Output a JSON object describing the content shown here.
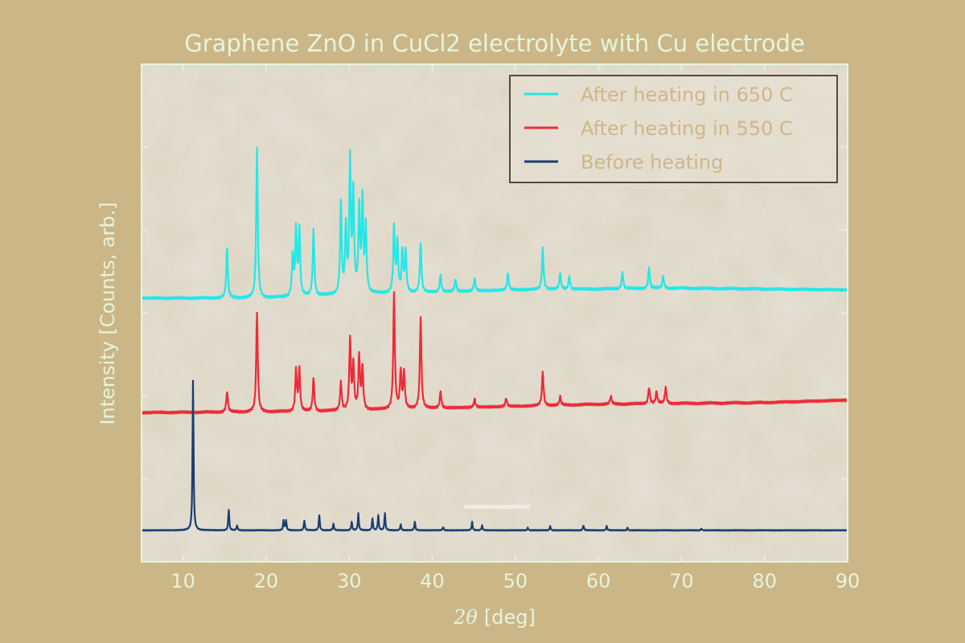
{
  "chart_data": {
    "type": "line",
    "title": "Graphene ZnO in CuCl2 electrolyte with Cu electrode",
    "xlabel_symbol": "2θ",
    "xlabel_unit": "[deg]",
    "ylabel": "Intensity [Counts, arb.]",
    "xlim": [
      5,
      90
    ],
    "ylim": [
      0,
      6
    ],
    "x_ticks": [
      10,
      20,
      30,
      40,
      50,
      60,
      70,
      80,
      90
    ],
    "y_tick_labels_shown": false,
    "grid": false,
    "legend_position": "top-right",
    "background_image": "SEM micrograph of crystalline flakes",
    "series": [
      {
        "name": "After heating in 650 C",
        "color": "#22e8e8",
        "baseline": [
          [
            5,
            3.18
          ],
          [
            20,
            3.18
          ],
          [
            30,
            3.22
          ],
          [
            50,
            3.28
          ],
          [
            70,
            3.3
          ],
          [
            90,
            3.28
          ]
        ],
        "peaks": [
          [
            15.3,
            0.6
          ],
          [
            18.9,
            1.8
          ],
          [
            23.2,
            0.5
          ],
          [
            23.6,
            0.8
          ],
          [
            24.0,
            0.8
          ],
          [
            25.7,
            0.8
          ],
          [
            29.0,
            1.1
          ],
          [
            29.6,
            0.8
          ],
          [
            30.1,
            1.6
          ],
          [
            30.5,
            1.2
          ],
          [
            31.2,
            1.0
          ],
          [
            31.6,
            1.1
          ],
          [
            32.0,
            0.8
          ],
          [
            35.4,
            0.8
          ],
          [
            35.8,
            0.6
          ],
          [
            36.4,
            0.5
          ],
          [
            36.8,
            0.5
          ],
          [
            38.6,
            0.6
          ],
          [
            41.0,
            0.2
          ],
          [
            42.8,
            0.15
          ],
          [
            45.1,
            0.15
          ],
          [
            49.1,
            0.2
          ],
          [
            53.3,
            0.5
          ],
          [
            55.4,
            0.2
          ],
          [
            56.5,
            0.15
          ],
          [
            62.9,
            0.2
          ],
          [
            66.1,
            0.25
          ],
          [
            67.8,
            0.15
          ]
        ]
      },
      {
        "name": "After heating in 550 C",
        "color": "#ee2a3a",
        "baseline": [
          [
            5,
            1.8
          ],
          [
            25,
            1.81
          ],
          [
            40,
            1.85
          ],
          [
            60,
            1.9
          ],
          [
            80,
            1.92
          ],
          [
            90,
            1.95
          ]
        ],
        "peaks": [
          [
            15.3,
            0.25
          ],
          [
            18.9,
            1.2
          ],
          [
            23.6,
            0.5
          ],
          [
            24.0,
            0.5
          ],
          [
            25.7,
            0.4
          ],
          [
            29.0,
            0.35
          ],
          [
            30.1,
            0.85
          ],
          [
            30.5,
            0.55
          ],
          [
            31.2,
            0.65
          ],
          [
            31.6,
            0.5
          ],
          [
            35.4,
            1.4
          ],
          [
            36.2,
            0.45
          ],
          [
            36.6,
            0.45
          ],
          [
            38.6,
            1.1
          ],
          [
            41.0,
            0.2
          ],
          [
            45.1,
            0.1
          ],
          [
            48.9,
            0.1
          ],
          [
            53.3,
            0.42
          ],
          [
            55.4,
            0.1
          ],
          [
            61.5,
            0.1
          ],
          [
            66.1,
            0.2
          ],
          [
            67.0,
            0.15
          ],
          [
            68.1,
            0.2
          ]
        ]
      },
      {
        "name": "Before heating",
        "color": "#1a3d72",
        "baseline": [
          [
            5,
            0.38
          ],
          [
            90,
            0.38
          ]
        ],
        "peaks": [
          [
            11.2,
            1.8
          ],
          [
            15.5,
            0.25
          ],
          [
            16.5,
            0.06
          ],
          [
            22.1,
            0.12
          ],
          [
            22.4,
            0.12
          ],
          [
            24.6,
            0.12
          ],
          [
            26.4,
            0.18
          ],
          [
            28.1,
            0.08
          ],
          [
            30.3,
            0.1
          ],
          [
            31.1,
            0.2
          ],
          [
            32.8,
            0.14
          ],
          [
            33.5,
            0.18
          ],
          [
            34.3,
            0.2
          ],
          [
            36.2,
            0.07
          ],
          [
            37.9,
            0.1
          ],
          [
            41.3,
            0.04
          ],
          [
            44.8,
            0.1
          ],
          [
            46.0,
            0.06
          ],
          [
            51.5,
            0.03
          ],
          [
            54.2,
            0.05
          ],
          [
            58.2,
            0.06
          ],
          [
            61.0,
            0.05
          ],
          [
            63.5,
            0.03
          ],
          [
            72.4,
            0.02
          ]
        ]
      }
    ]
  }
}
